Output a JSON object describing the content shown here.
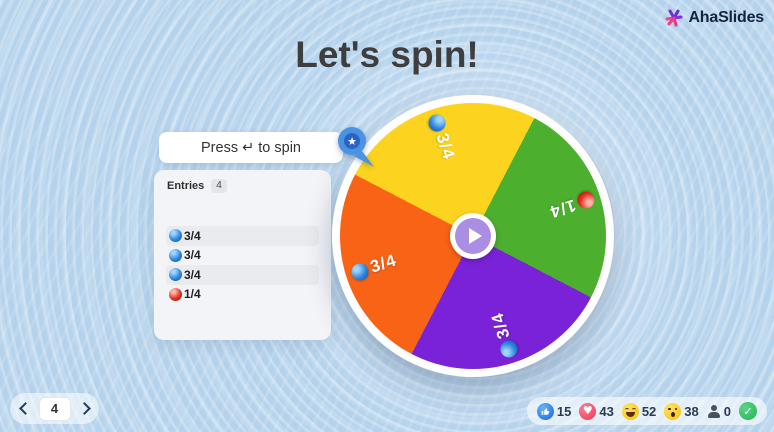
{
  "app": {
    "brand": "AhaSlides"
  },
  "header": {
    "title": "Let's spin!"
  },
  "spin_panel": {
    "press_hint": "Press ↵ to spin",
    "entries_label": "Entries",
    "entries_count": "4",
    "entries": [
      {
        "label": "3/4",
        "ball": "blue"
      },
      {
        "label": "3/4",
        "ball": "blue"
      },
      {
        "label": "3/4",
        "ball": "blue"
      },
      {
        "label": "1/4",
        "ball": "red"
      }
    ]
  },
  "wheel": {
    "start_angle_deg": 27.5,
    "colors": {
      "yellow": "#fcd41f",
      "green": "#4cb02e",
      "purple": "#7a22d8",
      "orange": "#f96316"
    },
    "segments": [
      {
        "label": "3/4",
        "color": "#fcd41f",
        "ball": "blue",
        "angle_deg": 342.5
      },
      {
        "label": "1/4",
        "color": "#4cb02e",
        "ball": "red",
        "angle_deg": 72.5
      },
      {
        "label": "3/4",
        "color": "#7a22d8",
        "ball": "blue",
        "angle_deg": 162.5
      },
      {
        "label": "3/4",
        "color": "#f96316",
        "ball": "blue",
        "angle_deg": 252.5
      }
    ]
  },
  "pagination": {
    "current": "4"
  },
  "reactions": [
    {
      "type": "like",
      "count": "15"
    },
    {
      "type": "heart",
      "count": "43"
    },
    {
      "type": "laugh",
      "count": "52"
    },
    {
      "type": "wow",
      "count": "38"
    },
    {
      "type": "person",
      "count": "0"
    },
    {
      "type": "check",
      "count": ""
    }
  ]
}
